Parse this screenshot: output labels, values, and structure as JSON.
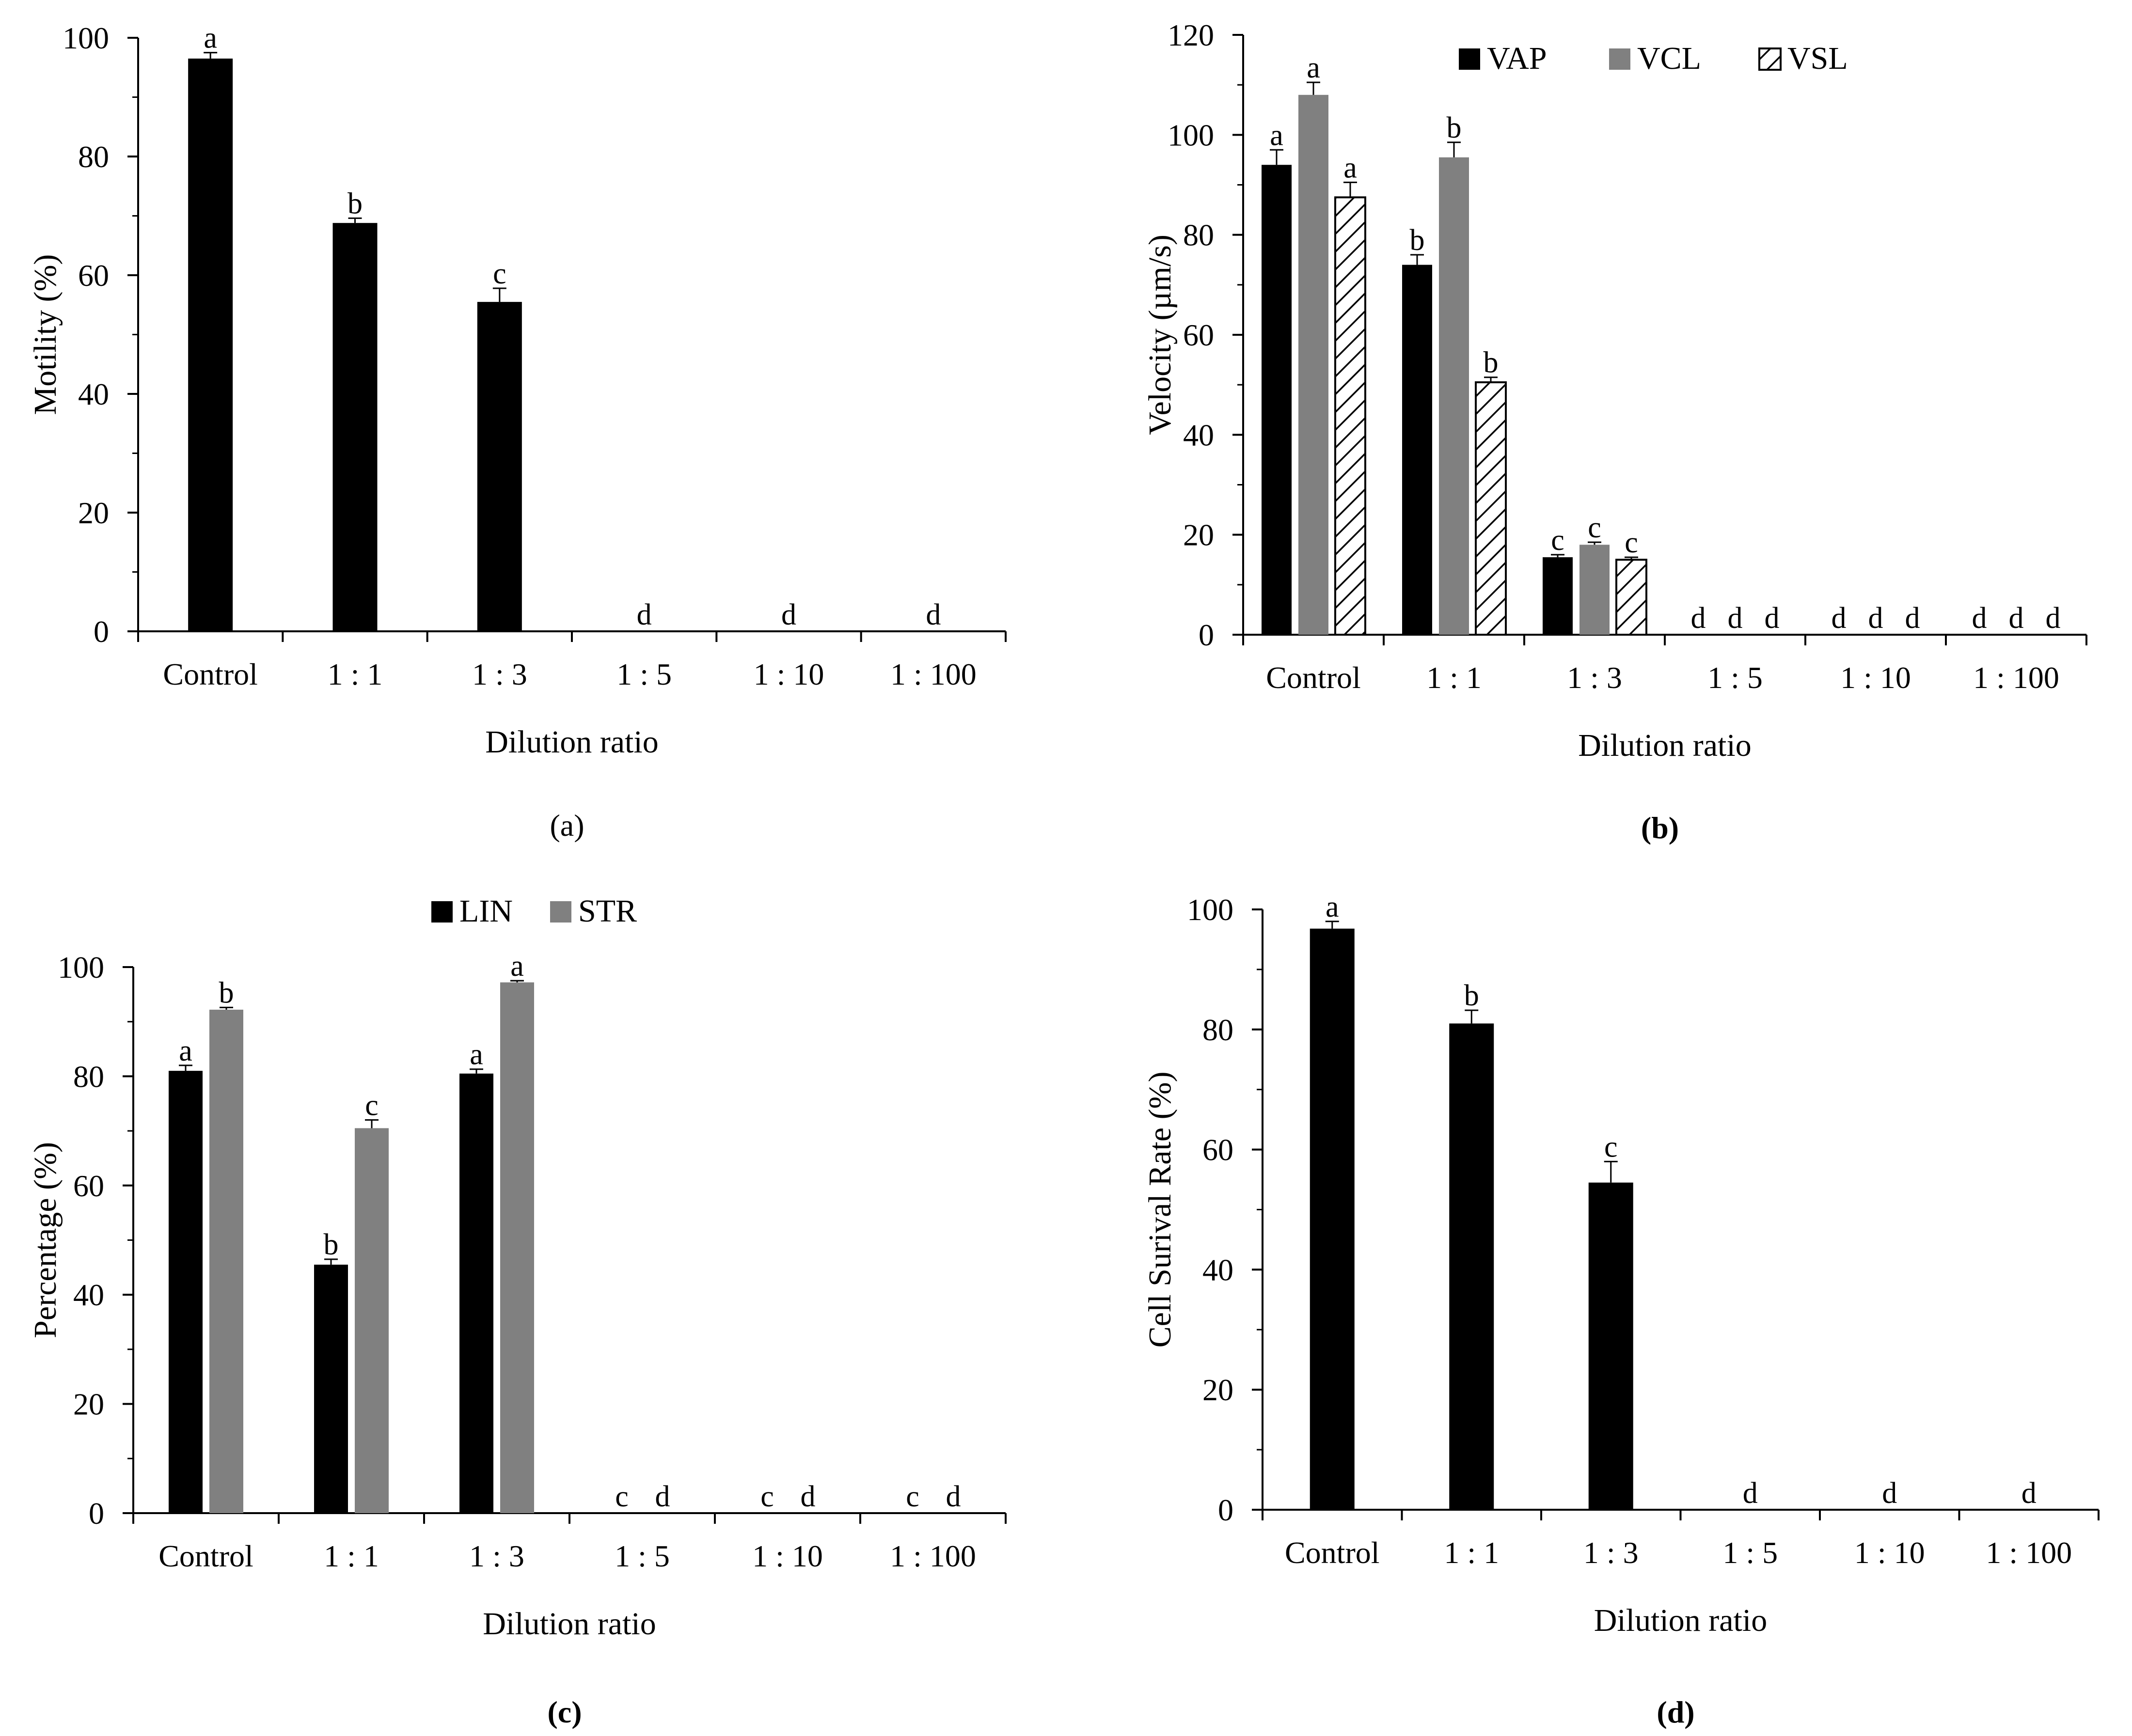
{
  "colors": {
    "black_series": "#000000",
    "gray_series": "#808080",
    "hatch_series": "#000000"
  },
  "chart_data": [
    {
      "id": "a",
      "type": "bar",
      "panel_label": "(a)",
      "panel_label_bold": false,
      "title": "",
      "xlabel": "Dilution ratio",
      "ylabel": "Motility (%)",
      "ylim": [
        0,
        100
      ],
      "yticks": [
        0,
        20,
        40,
        60,
        80,
        100
      ],
      "grid": false,
      "legend": null,
      "categories": [
        "Control",
        "1 : 1",
        "1 : 3",
        "1 : 5",
        "1 : 10",
        "1 : 100"
      ],
      "series": [
        {
          "name": "Motility",
          "fill": "black",
          "values": [
            96.5,
            68.8,
            55.5,
            0,
            0,
            0
          ],
          "errors": [
            1.0,
            0.8,
            2.3,
            0,
            0,
            0
          ],
          "letters": [
            "a",
            "b",
            "c",
            "d",
            "d",
            "d"
          ]
        }
      ]
    },
    {
      "id": "b",
      "type": "bar",
      "panel_label": "(b)",
      "panel_label_bold": true,
      "title": "",
      "xlabel": "Dilution ratio",
      "ylabel": "Velocity (µm/s)",
      "ylim": [
        0,
        120
      ],
      "yticks": [
        0,
        20,
        40,
        60,
        80,
        100,
        120
      ],
      "grid": false,
      "legend": "top",
      "categories": [
        "Control",
        "1 : 1",
        "1 : 3",
        "1 : 5",
        "1 : 10",
        "1 : 100"
      ],
      "series": [
        {
          "name": "VAP",
          "fill": "black",
          "values": [
            94,
            74,
            15.5,
            0,
            0,
            0
          ],
          "errors": [
            3.0,
            2.0,
            0.5,
            0,
            0,
            0
          ],
          "letters": [
            "a",
            "b",
            "c",
            "d",
            "d",
            "d"
          ]
        },
        {
          "name": "VCL",
          "fill": "gray",
          "values": [
            108,
            95.5,
            18,
            0,
            0,
            0
          ],
          "errors": [
            2.5,
            3.0,
            0.5,
            0,
            0,
            0
          ],
          "letters": [
            "a",
            "b",
            "c",
            "d",
            "d",
            "d"
          ]
        },
        {
          "name": "VSL",
          "fill": "hatch",
          "values": [
            87.5,
            50.5,
            15,
            0,
            0,
            0
          ],
          "errors": [
            3.0,
            1.0,
            0.5,
            0,
            0,
            0
          ],
          "letters": [
            "a",
            "b",
            "c",
            "d",
            "d",
            "d"
          ]
        }
      ]
    },
    {
      "id": "c",
      "type": "bar",
      "panel_label": "(c)",
      "panel_label_bold": true,
      "title": "",
      "xlabel": "Dilution ratio",
      "ylabel": "Percentage (%)",
      "ylim": [
        0,
        100
      ],
      "yticks": [
        0,
        20,
        40,
        60,
        80,
        100
      ],
      "grid": false,
      "legend": "top",
      "categories": [
        "Control",
        "1 : 1",
        "1 : 3",
        "1 : 5",
        "1 : 10",
        "1 : 100"
      ],
      "series": [
        {
          "name": "LIN",
          "fill": "black",
          "values": [
            81,
            45.5,
            80.5,
            0,
            0,
            0
          ],
          "errors": [
            1.0,
            1.0,
            0.8,
            0,
            0,
            0
          ],
          "letters": [
            "a",
            "b",
            "a",
            "c",
            "c",
            "c"
          ]
        },
        {
          "name": "STR",
          "fill": "gray",
          "values": [
            92.2,
            70.5,
            97.2,
            0,
            0,
            0
          ],
          "errors": [
            0.4,
            1.5,
            0.3,
            0,
            0,
            0
          ],
          "letters": [
            "b",
            "c",
            "a",
            "d",
            "d",
            "d"
          ]
        }
      ]
    },
    {
      "id": "d",
      "type": "bar",
      "panel_label": "(d)",
      "panel_label_bold": true,
      "title": "",
      "xlabel": "Dilution ratio",
      "ylabel": "Cell Surival Rate (%)",
      "ylim": [
        0,
        100
      ],
      "yticks": [
        0,
        20,
        40,
        60,
        80,
        100
      ],
      "grid": false,
      "legend": null,
      "categories": [
        "Control",
        "1 : 1",
        "1 : 3",
        "1 : 5",
        "1 : 10",
        "1 : 100"
      ],
      "series": [
        {
          "name": "Cell survival rate",
          "fill": "black",
          "values": [
            96.8,
            81,
            54.5,
            0,
            0,
            0
          ],
          "errors": [
            1.2,
            2.2,
            3.5,
            0,
            0,
            0
          ],
          "letters": [
            "a",
            "b",
            "c",
            "d",
            "d",
            "d"
          ]
        }
      ]
    }
  ]
}
